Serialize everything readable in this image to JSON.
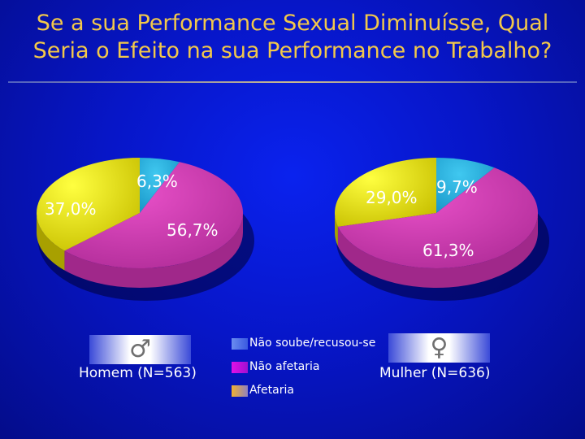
{
  "title": {
    "line1": "Se a sua Performance Sexual Diminuísse, Qual",
    "line2": "Seria o Efeito na sua Performance no Trabalho?"
  },
  "colors": {
    "background": "#0716c8",
    "title": "#f2c84a",
    "nao_soube": "#2ab4e8",
    "nao_afetaria": "#d83cb8",
    "afetaria": "#e8e800"
  },
  "legend": [
    {
      "label": "Não soube/recusou-se",
      "color": "#6a8cf0"
    },
    {
      "label": "Não afetaria",
      "color": "#e010e8"
    },
    {
      "label": "Afetaria",
      "color": "#e8b040"
    }
  ],
  "groups": [
    {
      "label": "Homem (N=563)",
      "icon": "male-symbol-icon",
      "glyph": "♂"
    },
    {
      "label": "Mulher (N=636)",
      "icon": "female-symbol-icon",
      "glyph": "♀"
    }
  ],
  "chart_data": [
    {
      "type": "pie",
      "title": "Homem (N=563)",
      "categories": [
        "Não soube/recusou-se",
        "Não afetaria",
        "Afetaria"
      ],
      "values": [
        6.3,
        56.7,
        37.0
      ],
      "labels": [
        "6,3%",
        "56,7%",
        "37,0%"
      ],
      "style": "3d"
    },
    {
      "type": "pie",
      "title": "Mulher (N=636)",
      "categories": [
        "Não soube/recusou-se",
        "Não afetaria",
        "Afetaria"
      ],
      "values": [
        9.7,
        61.3,
        29.0
      ],
      "labels": [
        "9,7%",
        "61,3%",
        "29,0%"
      ],
      "style": "3d"
    }
  ]
}
